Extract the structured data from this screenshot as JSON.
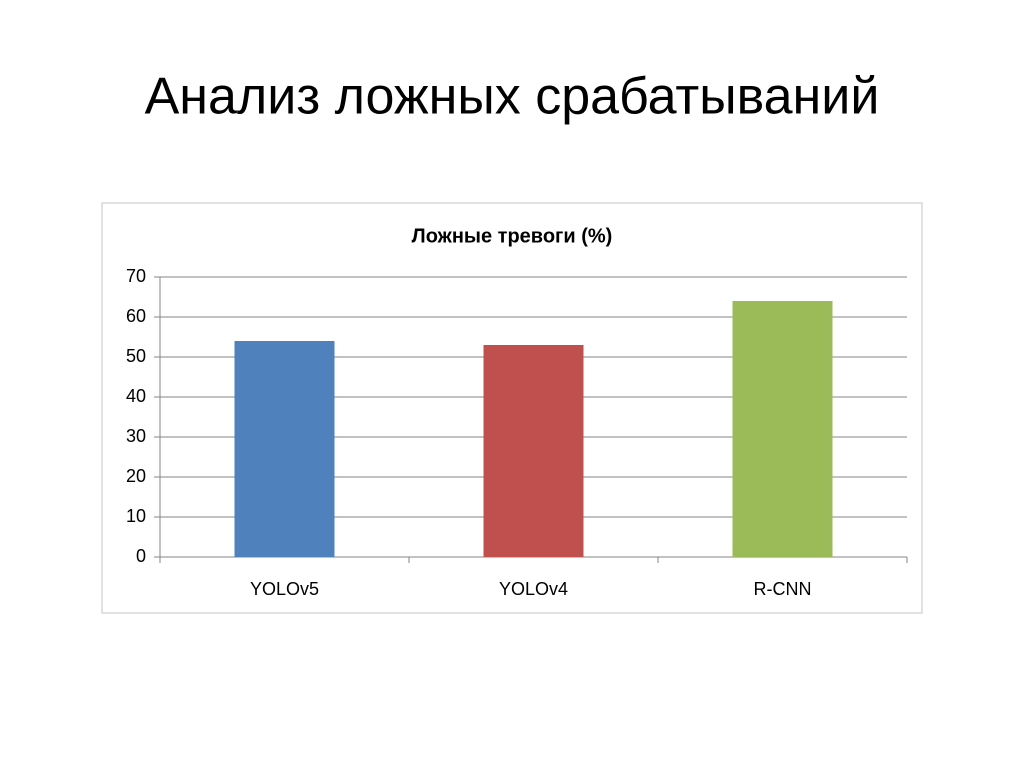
{
  "title": "Анализ ложных срабатываний",
  "chart_data": {
    "type": "bar",
    "title": "Ложные тревоги (%)",
    "categories": [
      "YOLOv5",
      "YOLOv4",
      "R-CNN"
    ],
    "values": [
      54,
      53,
      64
    ],
    "colors": [
      "#4f81bd",
      "#c0504d",
      "#9bbb59"
    ],
    "ylim": [
      0,
      70
    ],
    "yticks": [
      0,
      10,
      20,
      30,
      40,
      50,
      60,
      70
    ],
    "grid": true
  }
}
